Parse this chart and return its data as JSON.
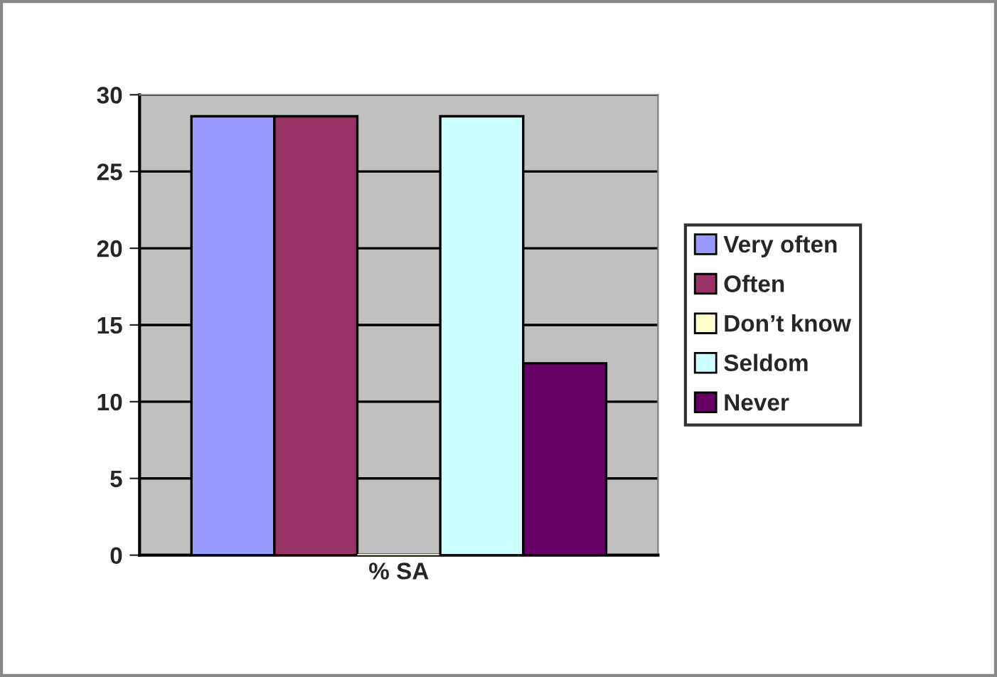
{
  "chart_data": {
    "type": "bar",
    "categories": [
      "% SA"
    ],
    "series": [
      {
        "name": "Very often",
        "color": "#9999ff",
        "values": [
          28.6
        ]
      },
      {
        "name": "Often",
        "color": "#993366",
        "values": [
          28.6
        ]
      },
      {
        "name": "Don’t know",
        "color": "#ffffcc",
        "values": [
          0
        ]
      },
      {
        "name": "Seldom",
        "color": "#ccffff",
        "values": [
          28.6
        ]
      },
      {
        "name": "Never",
        "color": "#660066",
        "values": [
          12.5
        ]
      }
    ],
    "ylim": [
      0,
      30
    ],
    "yticks": [
      0,
      5,
      10,
      15,
      20,
      25,
      30
    ],
    "grid": "y",
    "legend": "right"
  }
}
